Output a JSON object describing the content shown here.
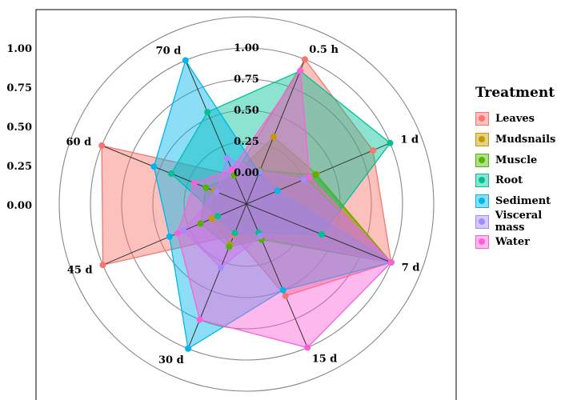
{
  "chart_data": {
    "type": "radar",
    "categories": [
      "0.5 h",
      "1 d",
      "7 d",
      "15 d",
      "30 d",
      "45 d",
      "60 d",
      "70 d"
    ],
    "radial_ticks": [
      "0.00",
      "0.25",
      "0.50",
      "0.75",
      "1.00"
    ],
    "axis_ticks": [
      "0.00",
      "0.25",
      "0.50",
      "0.75",
      "1.00"
    ],
    "ylim": [
      0,
      1
    ],
    "legend_title": "Treatment",
    "legend_position": "right",
    "series": [
      {
        "name": "Leaves",
        "color": "#F8766D",
        "values": [
          1.0,
          0.85,
          1.0,
          0.55,
          0.02,
          1.0,
          1.0,
          0.0
        ]
      },
      {
        "name": "Mudsnails",
        "color": "#C49A00",
        "values": [
          0.33,
          0.36,
          1.0,
          0.04,
          0.1,
          0.05,
          0.03,
          0.0
        ]
      },
      {
        "name": "Muscle",
        "color": "#53B400",
        "values": [
          0.04,
          0.35,
          1.0,
          0.06,
          0.12,
          0.15,
          0.1,
          0.0
        ]
      },
      {
        "name": "Root",
        "color": "#00C094",
        "values": [
          0.9,
          1.0,
          0.4,
          0.0,
          0.0,
          0.0,
          0.4,
          0.55
        ]
      },
      {
        "name": "Sediment",
        "color": "#00B6EB",
        "values": [
          0.02,
          0.02,
          1.0,
          0.5,
          1.0,
          0.42,
          0.55,
          1.0
        ]
      },
      {
        "name": "Visceral mass",
        "color": "#A58AFF",
        "values": [
          0.03,
          0.25,
          1.0,
          0.03,
          0.3,
          0.3,
          0.01,
          0.15
        ]
      },
      {
        "name": "Water",
        "color": "#FB61D7",
        "values": [
          0.9,
          0.3,
          1.0,
          1.0,
          0.75,
          0.35,
          0.2,
          0.05
        ]
      }
    ]
  }
}
